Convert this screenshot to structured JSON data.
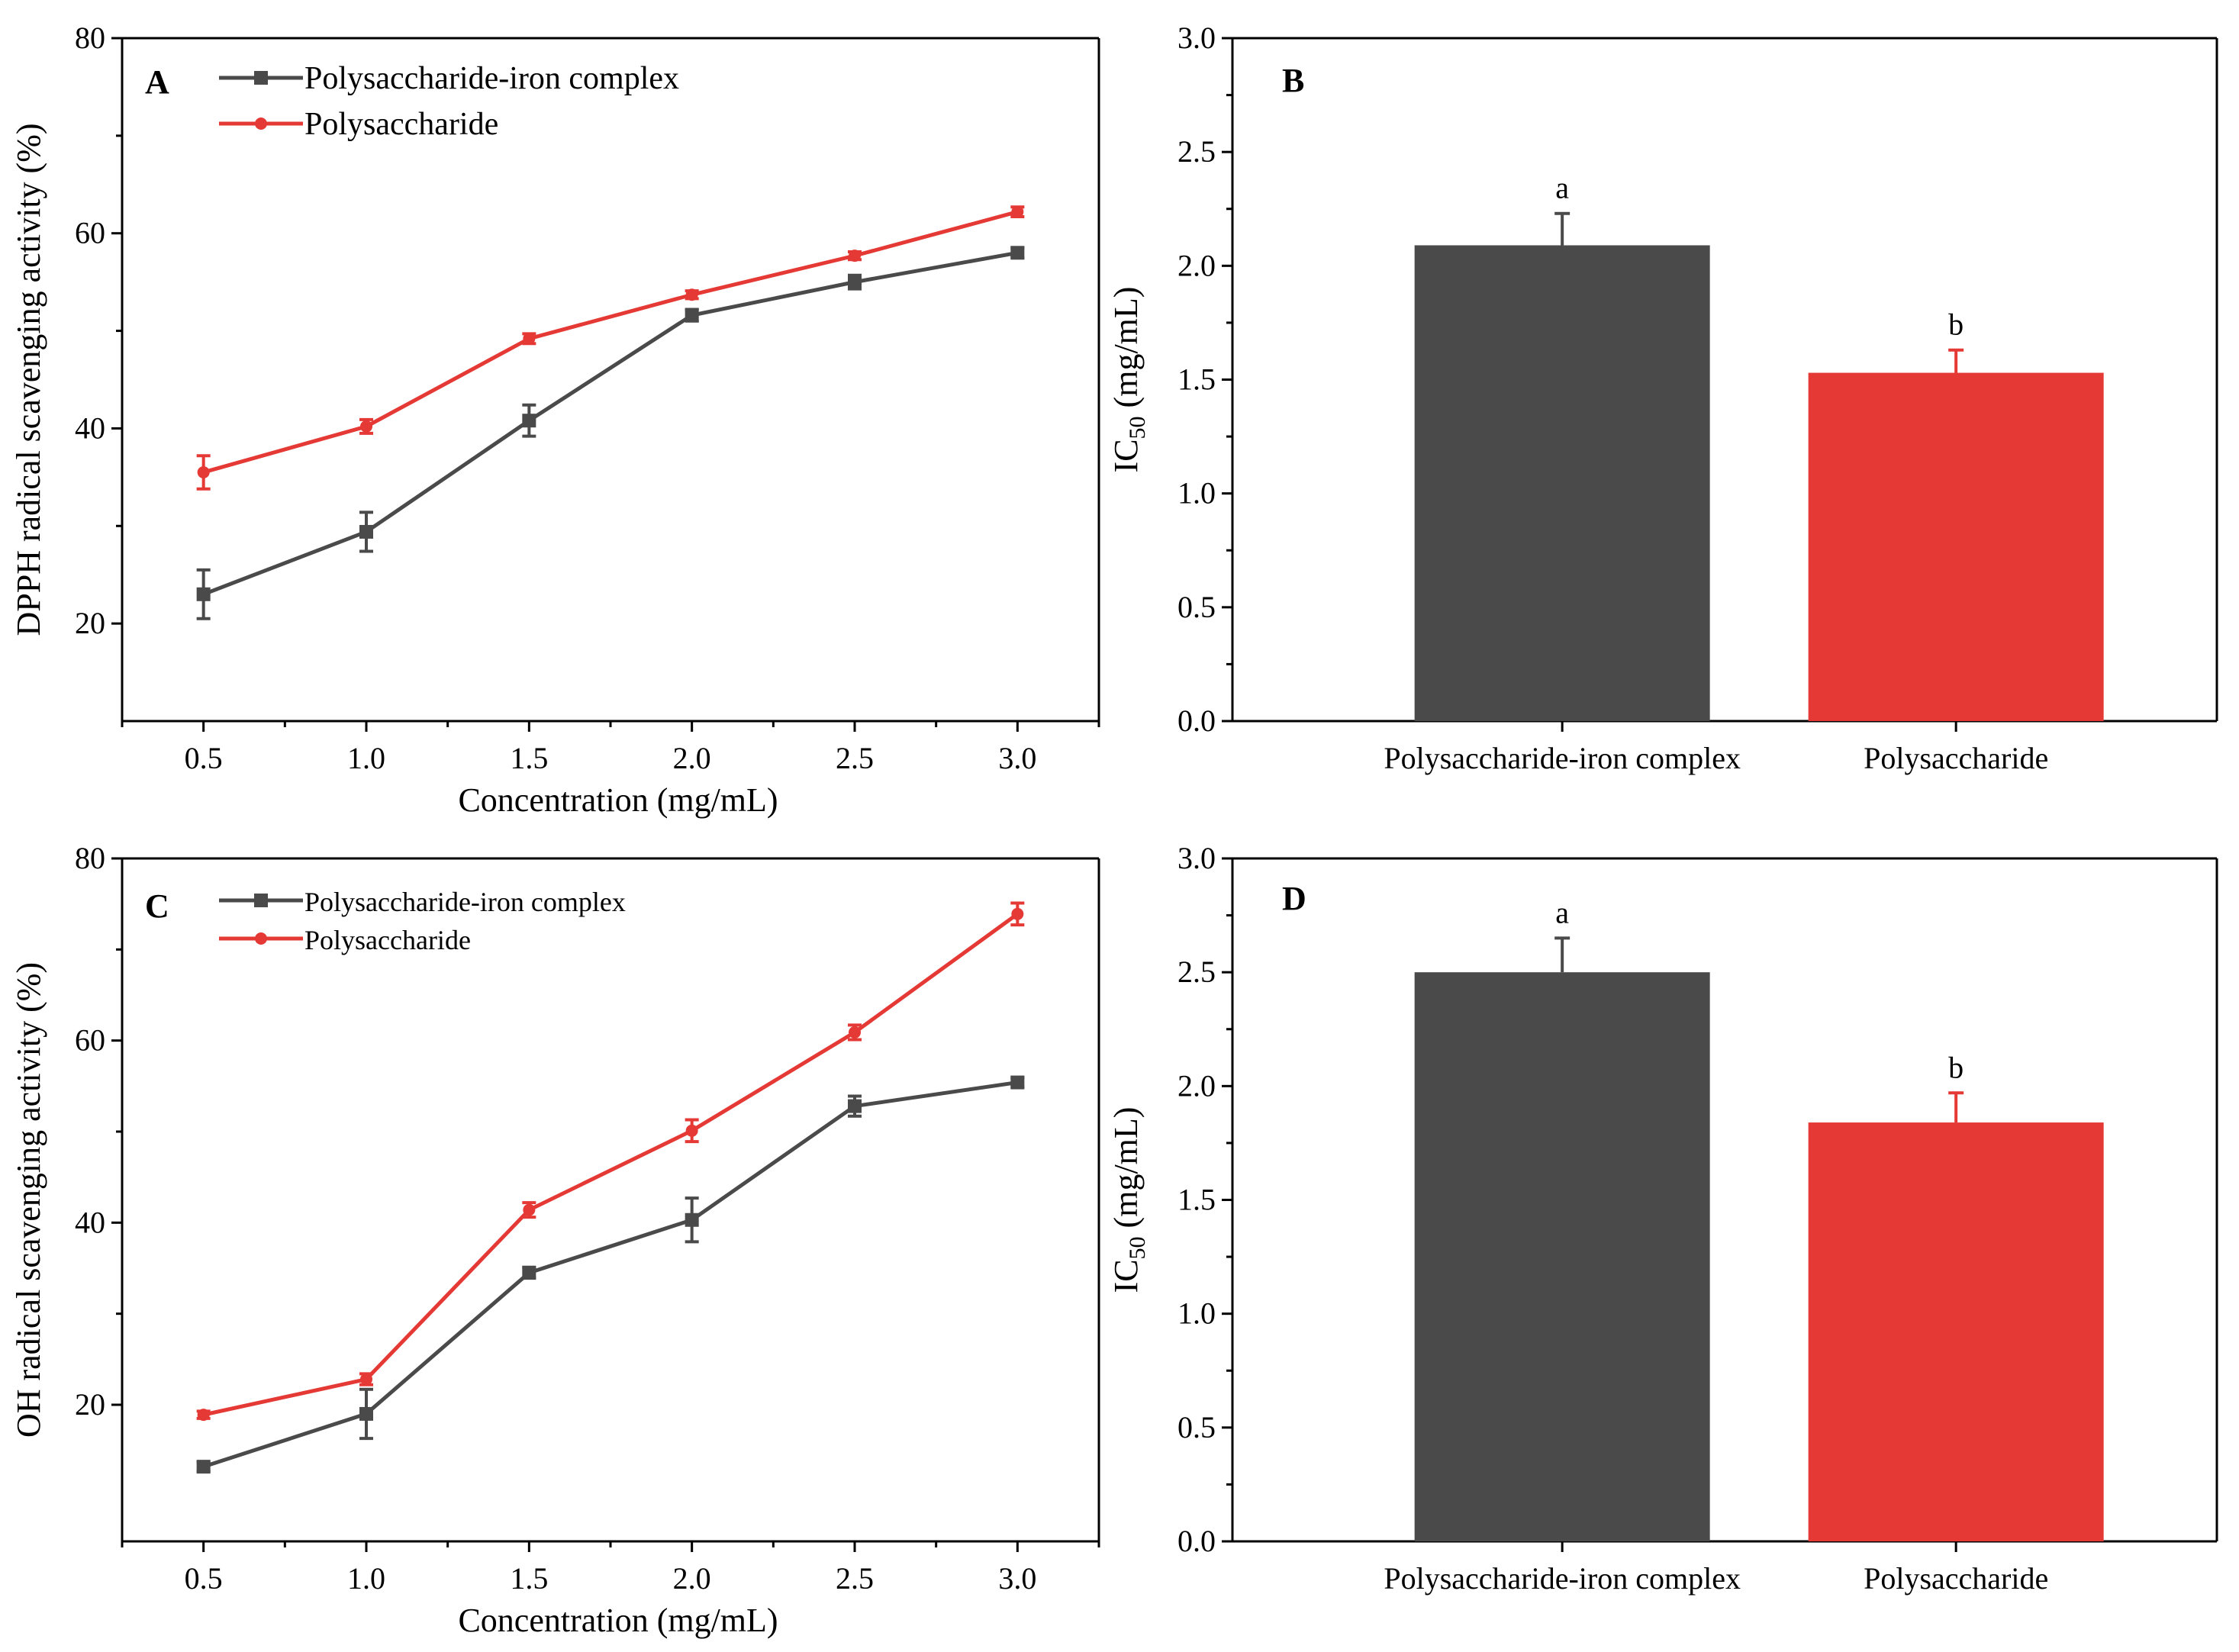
{
  "colors": {
    "iron": "#4a4a4a",
    "poly": "#e53935",
    "axis": "#000000"
  },
  "chart_data": [
    {
      "panel": "A",
      "type": "line",
      "xlabel": "Concentration (mg/mL)",
      "ylabel": "DPPH radical scavenging  activity (%)",
      "x": [
        0.5,
        1.0,
        1.5,
        2.0,
        2.5,
        3.0
      ],
      "x_tick_labels": [
        "0.5",
        "1.0",
        "1.5",
        "2.0",
        "2.5",
        "3.0"
      ],
      "xlim": [
        0.25,
        3.25
      ],
      "ylim": [
        10,
        80
      ],
      "y_ticks": [
        20,
        40,
        60,
        80
      ],
      "y_tick_labels": [
        "20",
        "40",
        "60",
        "80"
      ],
      "legend_position": "top-left",
      "series": [
        {
          "name": "Polysaccharide-iron complex",
          "color_key": "iron",
          "marker": "square",
          "values": [
            23.0,
            29.4,
            40.8,
            51.6,
            55.0,
            58.0
          ],
          "errors": [
            2.5,
            2.0,
            1.6,
            0.6,
            0.7,
            0.5
          ]
        },
        {
          "name": "Polysaccharide",
          "color_key": "poly",
          "marker": "circle",
          "values": [
            35.5,
            40.2,
            49.2,
            53.7,
            57.7,
            62.2
          ],
          "errors": [
            1.7,
            0.7,
            0.5,
            0.4,
            0.4,
            0.5
          ]
        }
      ]
    },
    {
      "panel": "B",
      "type": "bar",
      "xlabel": "",
      "ylabel_main": "IC",
      "ylabel_sub": "50",
      "ylabel_rest": " (mg/mL)",
      "categories": [
        "Polysaccharide-iron complex",
        "Polysaccharide"
      ],
      "color_keys": [
        "iron",
        "poly"
      ],
      "values": [
        2.09,
        1.53
      ],
      "errors": [
        0.14,
        0.1
      ],
      "significance": [
        "a",
        "b"
      ],
      "ylim": [
        0,
        3.0
      ],
      "y_ticks": [
        0,
        0.5,
        1.0,
        1.5,
        2.0,
        2.5,
        3.0
      ],
      "y_tick_labels": [
        "0.0",
        "0.5",
        "1.0",
        "1.5",
        "2.0",
        "2.5",
        "3.0"
      ]
    },
    {
      "panel": "C",
      "type": "line",
      "xlabel": "Concentration (mg/mL)",
      "ylabel": "OH radical scavenging activity (%)",
      "x": [
        0.5,
        1.0,
        1.5,
        2.0,
        2.5,
        3.0
      ],
      "x_tick_labels": [
        "0.5",
        "1.0",
        "1.5",
        "2.0",
        "2.5",
        "3.0"
      ],
      "xlim": [
        0.25,
        3.25
      ],
      "ylim": [
        5,
        80
      ],
      "y_ticks": [
        20,
        40,
        60,
        80
      ],
      "y_tick_labels": [
        "20",
        "40",
        "60",
        "80"
      ],
      "legend_position": "top-left",
      "series": [
        {
          "name": " Polysaccharide-iron complex",
          "color_key": "iron",
          "marker": "square",
          "values": [
            13.2,
            19.0,
            34.5,
            40.3,
            52.8,
            55.4
          ],
          "errors": [
            0.5,
            2.7,
            0.6,
            2.4,
            1.1,
            0.5
          ]
        },
        {
          "name": "Polysaccharide",
          "color_key": "poly",
          "marker": "circle",
          "values": [
            18.9,
            22.8,
            41.4,
            50.1,
            60.9,
            73.9
          ],
          "errors": [
            0.4,
            0.6,
            0.8,
            1.2,
            0.8,
            1.2
          ]
        }
      ]
    },
    {
      "panel": "D",
      "type": "bar",
      "xlabel": "",
      "ylabel_main": "IC",
      "ylabel_sub": "50",
      "ylabel_rest": " (mg/mL)",
      "categories": [
        "Polysaccharide-iron complex",
        "Polysaccharide"
      ],
      "color_keys": [
        "iron",
        "poly"
      ],
      "values": [
        2.5,
        1.84
      ],
      "errors": [
        0.15,
        0.13
      ],
      "significance": [
        "a",
        "b"
      ],
      "ylim": [
        0,
        3.0
      ],
      "y_ticks": [
        0,
        0.5,
        1.0,
        1.5,
        2.0,
        2.5,
        3.0
      ],
      "y_tick_labels": [
        "0.0",
        "0.5",
        "1.0",
        "1.5",
        "2.0",
        "2.5",
        "3.0"
      ]
    }
  ]
}
